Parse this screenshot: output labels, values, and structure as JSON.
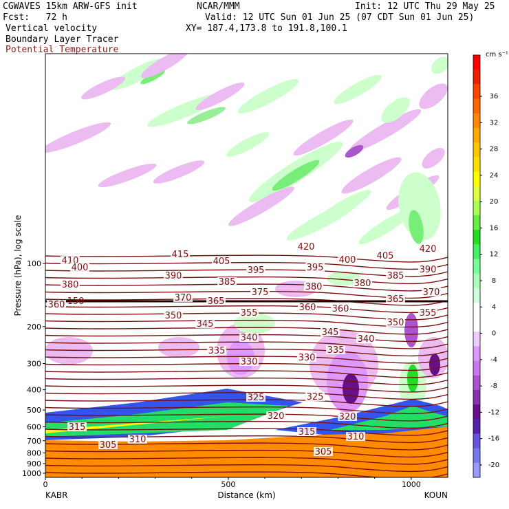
{
  "header": {
    "model": "CGWAVES 15km ARW-GFS init",
    "org": "NCAR/MMM",
    "init": "Init: 12 UTC Thu 29 May 25",
    "fcst": "Fcst:   72 h",
    "valid": "Valid: 12 UTC Sun 01 Jun 25 (07 CDT Sun 01 Jun 25)",
    "field1": "Vertical velocity",
    "field2": "Boundary Layer Tracer",
    "field3": "Potential Temperature",
    "xy": "XY= 187.4,173.8 to 191.8,100.1",
    "field3_color": "#8b1a1a"
  },
  "chart_data": {
    "type": "heatmap",
    "xlabel": "Distance (km)",
    "ylabel": "Pressure (hPa), log scale",
    "x_ticks": [
      "0",
      "500",
      "1000"
    ],
    "x_end_labels": [
      "KABR",
      "KOUN"
    ],
    "y_ticks": [
      "100",
      "200",
      "300",
      "400",
      "500",
      "600",
      "700",
      "800",
      "900",
      "1000"
    ],
    "colorbar": {
      "units": "cm s⁻¹",
      "tick_labels": [
        "36",
        "32",
        "28",
        "24",
        "20",
        "16",
        "12",
        "8",
        "4",
        "0",
        "-4",
        "-8",
        "-12",
        "-16",
        "-20"
      ],
      "colors": [
        "#ff0000",
        "#ee2200",
        "#ff4400",
        "#ff6600",
        "#ff8800",
        "#ffaa00",
        "#ffc800",
        "#ffe000",
        "#ffff00",
        "#ddff44",
        "#aaff55",
        "#66ee44",
        "#22dd22",
        "#44ee66",
        "#77ff99",
        "#aaffbb",
        "#ccffdd",
        "#ffffff",
        "#ffffff",
        "#eeccff",
        "#dd99ff",
        "#cc77ee",
        "#aa55cc",
        "#8833aa",
        "#661188",
        "#5522aa",
        "#6655dd",
        "#7777ee",
        "#9999ff"
      ]
    },
    "isentrope_labels": [
      "420",
      "420",
      "415",
      "410",
      "405",
      "405",
      "400",
      "400",
      "395",
      "395",
      "390",
      "390",
      "385",
      "385",
      "380",
      "380",
      "380",
      "375",
      "370",
      "370",
      "365",
      "365",
      "360",
      "360",
      "360",
      "355",
      "355",
      "350",
      "350",
      "345",
      "345",
      "340",
      "340",
      "335",
      "335",
      "330",
      "330",
      "325",
      "325",
      "320",
      "320",
      "315",
      "315",
      "310",
      "310",
      "305",
      "305"
    ],
    "tropopause_label": "150"
  }
}
